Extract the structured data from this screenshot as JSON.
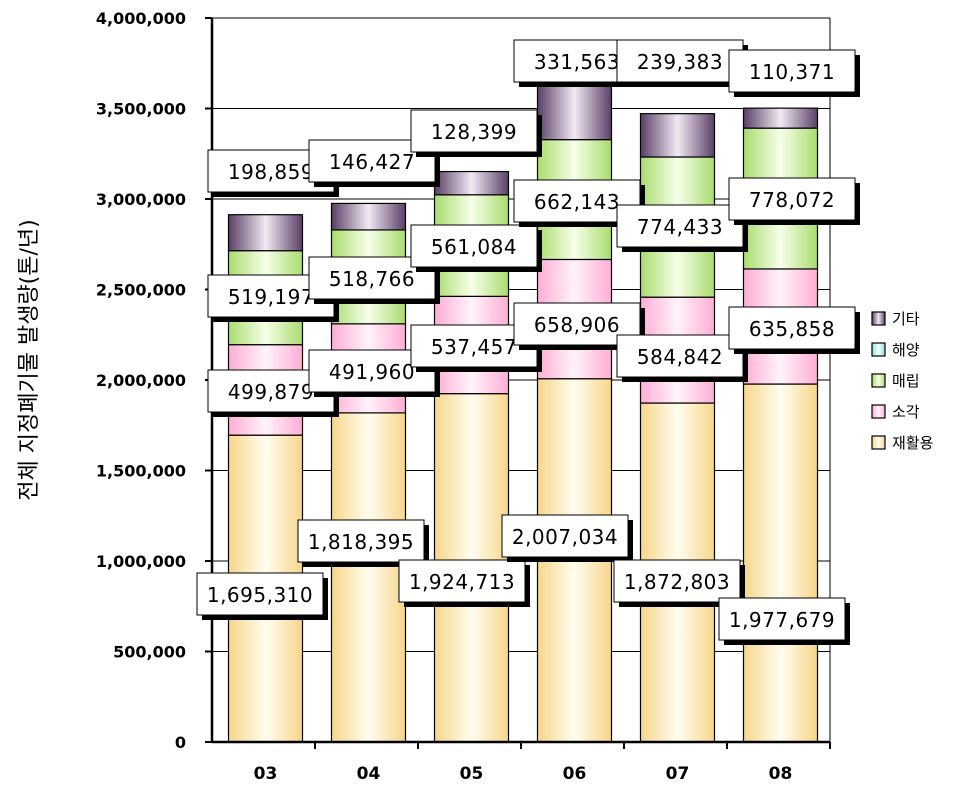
{
  "chart_data": {
    "type": "bar",
    "stacked": true,
    "ylabel": "전체 지정폐기물 발생량(톤/년)",
    "xlabel": "",
    "title": "",
    "ylim": [
      0,
      4000000
    ],
    "yticks": [
      0,
      500000,
      1000000,
      1500000,
      2000000,
      2500000,
      3000000,
      3500000,
      4000000
    ],
    "ytick_labels": [
      "0",
      "500,000",
      "1,000,000",
      "1,500,000",
      "2,000,000",
      "2,500,000",
      "3,000,000",
      "3,500,000",
      "4,000,000"
    ],
    "grid": "horizontal",
    "legend_position": "right",
    "categories": [
      "03",
      "04",
      "05",
      "06",
      "07",
      "08"
    ],
    "series": [
      {
        "name": "재활용",
        "color": "#ffe6a3",
        "values": [
          1695310,
          1818395,
          1924713,
          2007034,
          1872803,
          1977679
        ],
        "labels": [
          "1,695,310",
          "1,818,395",
          "1,924,713",
          "2,007,034",
          "1,872,803",
          "1,977,679"
        ]
      },
      {
        "name": "소각",
        "color": "#ffc8e6",
        "values": [
          499879,
          491960,
          537457,
          658906,
          584842,
          635858
        ],
        "labels": [
          "499,879",
          "491,960",
          "537,457",
          "658,906",
          "584,842",
          "635,858"
        ]
      },
      {
        "name": "매립",
        "color": "#cdeea0",
        "values": [
          519197,
          518766,
          561084,
          662143,
          774433,
          778072
        ],
        "labels": [
          "519,197",
          "518,766",
          "561,084",
          "662,143",
          "774,433",
          "778,072"
        ]
      },
      {
        "name": "해양",
        "color": "#bff2f2",
        "values": [
          0,
          0,
          0,
          0,
          0,
          0
        ],
        "labels": [
          "",
          "",
          "",
          "",
          "",
          ""
        ]
      },
      {
        "name": "기타",
        "color": "#a08aa8",
        "values": [
          198859,
          146427,
          128399,
          331563,
          239383,
          110371
        ],
        "labels": [
          "198,859",
          "146,427",
          "128,399",
          "331,563",
          "239,383",
          "110,371"
        ]
      }
    ],
    "legend_order": [
      "기타",
      "해양",
      "매립",
      "소각",
      "재활용"
    ]
  }
}
